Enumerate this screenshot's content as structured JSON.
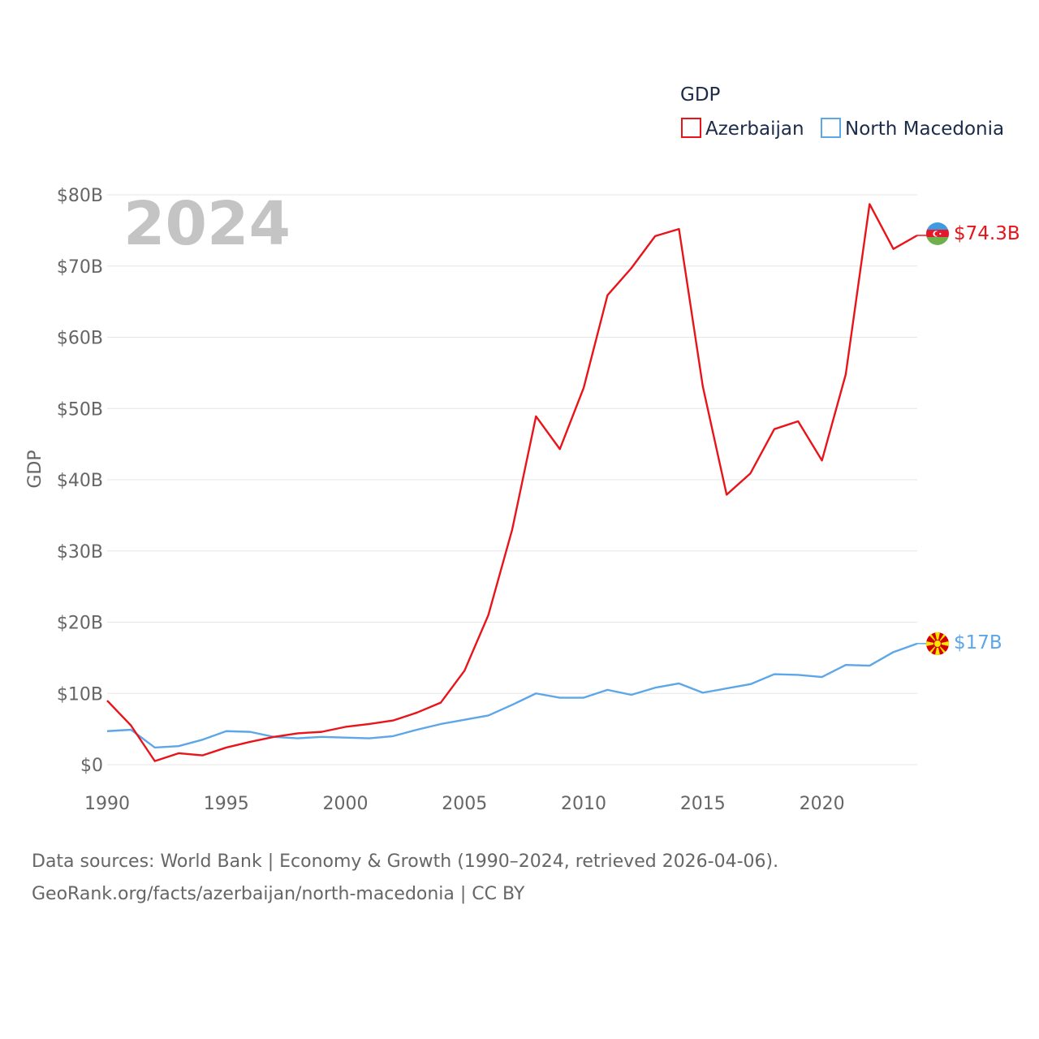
{
  "chart_data": {
    "type": "line",
    "ylabel": "GDP",
    "ylim": [
      0,
      80
    ],
    "xlim": [
      1990,
      2024
    ],
    "x_ticks": [
      "1990",
      "1995",
      "2000",
      "2005",
      "2010",
      "2015",
      "2020"
    ],
    "y_ticks": [
      "$0",
      "$10B",
      "$20B",
      "$30B",
      "$40B",
      "$50B",
      "$60B",
      "$70B",
      "$80B"
    ],
    "year_label": "2024",
    "legend_title": "GDP",
    "x": [
      1990,
      1991,
      1992,
      1993,
      1994,
      1995,
      1996,
      1997,
      1998,
      1999,
      2000,
      2001,
      2002,
      2003,
      2004,
      2005,
      2006,
      2007,
      2008,
      2009,
      2010,
      2011,
      2012,
      2013,
      2014,
      2015,
      2016,
      2017,
      2018,
      2019,
      2020,
      2021,
      2022,
      2023,
      2024
    ],
    "series": [
      {
        "name": "Azerbaijan",
        "color": "#e8141a",
        "end_label": "$74.3B",
        "values": [
          9.0,
          5.5,
          0.5,
          1.6,
          1.3,
          2.4,
          3.2,
          3.9,
          4.4,
          4.6,
          5.3,
          5.7,
          6.2,
          7.3,
          8.7,
          13.2,
          21.0,
          33.0,
          48.9,
          44.3,
          52.9,
          65.9,
          69.7,
          74.2,
          75.2,
          53.1,
          37.9,
          40.9,
          47.1,
          48.2,
          42.7,
          54.8,
          78.7,
          72.4,
          74.3
        ]
      },
      {
        "name": "North Macedonia",
        "color": "#5da6e8",
        "end_label": "$17B",
        "values": [
          4.7,
          4.9,
          2.4,
          2.6,
          3.5,
          4.7,
          4.6,
          3.9,
          3.7,
          3.9,
          3.8,
          3.7,
          4.0,
          4.9,
          5.7,
          6.3,
          6.9,
          8.4,
          10.0,
          9.4,
          9.4,
          10.5,
          9.8,
          10.8,
          11.4,
          10.1,
          10.7,
          11.3,
          12.7,
          12.6,
          12.3,
          14.0,
          13.9,
          15.8,
          17.0
        ]
      }
    ]
  },
  "footer": {
    "line1": "Data sources: World Bank | Economy & Growth (1990–2024, retrieved 2026-04-06).",
    "line2": "GeoRank.org/facts/azerbaijan/north-macedonia | CC BY"
  }
}
